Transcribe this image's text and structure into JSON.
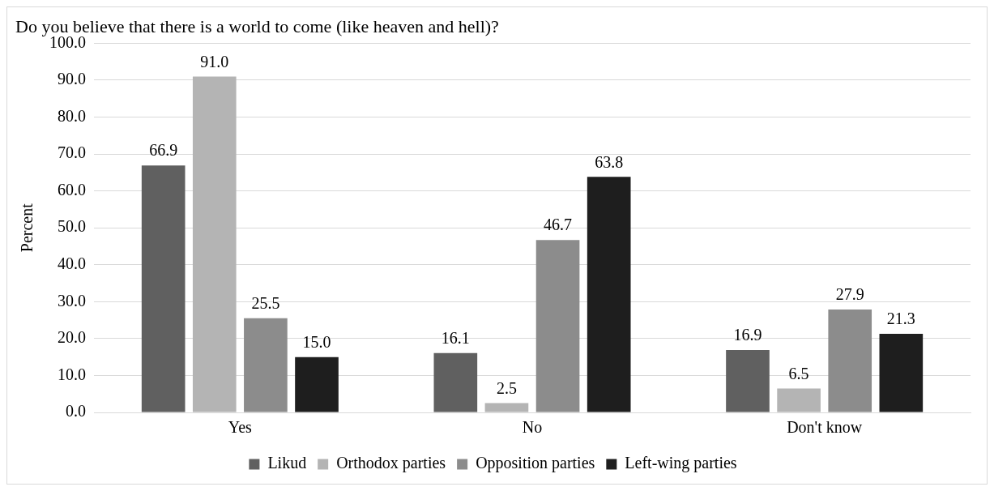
{
  "chart_data": {
    "type": "bar",
    "title": "Do you believe that there is a world to come (like heaven and hell)?",
    "ylabel": "Percent",
    "categories": [
      "Yes",
      "No",
      "Don't know"
    ],
    "series": [
      {
        "name": "Likud",
        "color": "#606060",
        "values": [
          66.9,
          16.1,
          16.9
        ],
        "value_labels": [
          "66.9",
          "16.1",
          "16.9"
        ]
      },
      {
        "name": "Orthodox parties",
        "color": "#b4b4b4",
        "values": [
          91.0,
          2.5,
          6.5
        ],
        "value_labels": [
          "91.0",
          "2.5",
          "6.5"
        ]
      },
      {
        "name": "Opposition parties",
        "color": "#8c8c8c",
        "values": [
          25.5,
          46.7,
          27.9
        ],
        "value_labels": [
          "25.5",
          "46.7",
          "27.9"
        ]
      },
      {
        "name": "Left-wing parties",
        "color": "#1e1e1e",
        "values": [
          15.0,
          63.8,
          21.3
        ],
        "value_labels": [
          "15.0",
          "63.8",
          "21.3"
        ]
      }
    ],
    "ylim": [
      0,
      100
    ],
    "yticks": [
      {
        "value": 0,
        "label": "0.0"
      },
      {
        "value": 10,
        "label": "10.0"
      },
      {
        "value": 20,
        "label": "20.0"
      },
      {
        "value": 30,
        "label": "30.0"
      },
      {
        "value": 40,
        "label": "40.0"
      },
      {
        "value": 50,
        "label": "50.0"
      },
      {
        "value": 60,
        "label": "60.0"
      },
      {
        "value": 70,
        "label": "70.0"
      },
      {
        "value": 80,
        "label": "80.0"
      },
      {
        "value": 90,
        "label": "90.0"
      },
      {
        "value": 100,
        "label": "100.0"
      }
    ],
    "grid": "y",
    "legend": "bottom"
  }
}
